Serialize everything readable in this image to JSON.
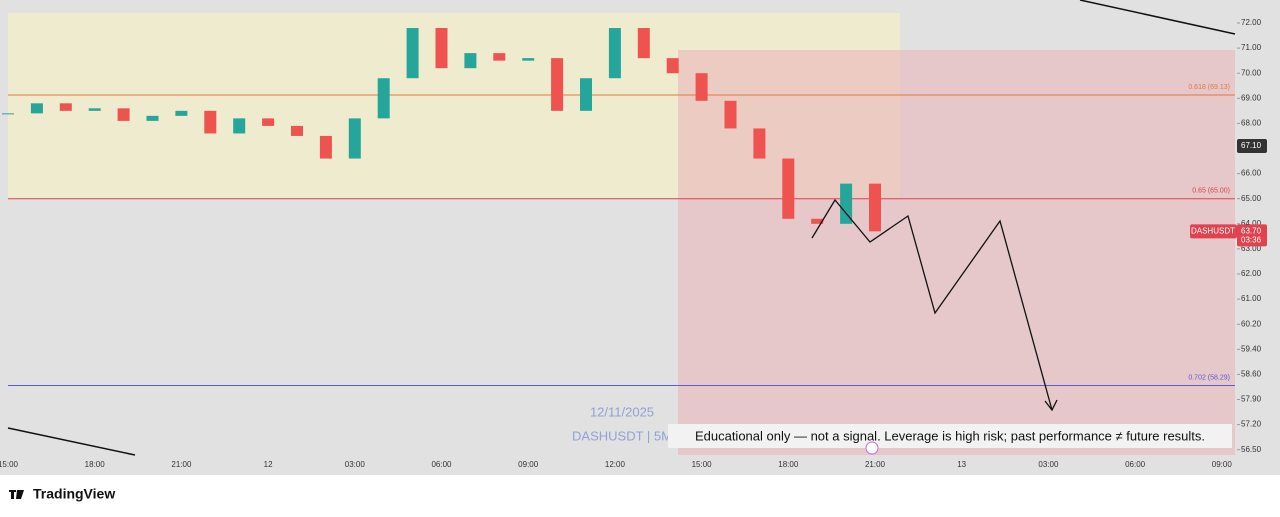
{
  "chart_data": {
    "type": "candlestick",
    "watermark_date": "12/11/2025",
    "watermark_symbol": "DASHUSDT | 5M",
    "disclaimer": "Educational only — not a signal. Leverage is high risk; past performance ≠ future results.",
    "brand": "TradingView",
    "price_tag": {
      "symbol": "DASHUSDT",
      "price": {
        "value": 63.7,
        "label": "63.70"
      },
      "countdown": "03:36",
      "color": "#e0424f"
    },
    "crosshair_price": {
      "value": 67.1,
      "label": "67.10"
    },
    "yticks": [
      {
        "value": 72,
        "label": "72.00"
      },
      {
        "value": 71,
        "label": "71.00"
      },
      {
        "value": 70,
        "label": "70.00"
      },
      {
        "value": 69,
        "label": "69.00"
      },
      {
        "value": 68,
        "label": "68.00"
      },
      {
        "value": 67,
        "label": "67.00"
      },
      {
        "value": 66,
        "label": "66.00"
      },
      {
        "value": 65,
        "label": "65.00"
      },
      {
        "value": 64,
        "label": "64.00"
      },
      {
        "value": 63,
        "label": "63.00"
      },
      {
        "value": 62,
        "label": "62.00"
      },
      {
        "value": 61,
        "label": "61.00"
      },
      {
        "value": 60.2,
        "label": "60.20"
      },
      {
        "value": 59.4,
        "label": "59.40"
      },
      {
        "value": 58.6,
        "label": "58.60"
      },
      {
        "value": 57.9,
        "label": "57.90"
      },
      {
        "value": 57.2,
        "label": "57.20"
      },
      {
        "value": 56.5,
        "label": "56.50"
      }
    ],
    "xticks": [
      "15:00",
      "18:00",
      "21:00",
      "12",
      "03:00",
      "06:00",
      "09:00",
      "12:00",
      "15:00",
      "18:00",
      "21:00",
      "13",
      "03:00",
      "06:00",
      "09:00"
    ],
    "closes": [
      68.4,
      68.8,
      68.5,
      68.6,
      68.1,
      68.3,
      68.5,
      67.6,
      68.2,
      67.9,
      67.5,
      66.6,
      68.2,
      69.8,
      71.8,
      70.2,
      70.8,
      70.5,
      70.6,
      68.5,
      69.8,
      71.8,
      70.6,
      70.0,
      68.9,
      67.8,
      66.6,
      64.2,
      64.0,
      65.6,
      63.7
    ],
    "up_color": "#26a69a",
    "down_color": "#ef5350",
    "levels": [
      {
        "label": "0.618 (69.13)",
        "value": 69.13,
        "color": "#e07b39"
      },
      {
        "label": "0.65 (65.00)",
        "value": 65.0,
        "color": "#e0424f"
      },
      {
        "label": "0.702 (58.29)",
        "value": 58.29,
        "color": "#5b5bd6"
      }
    ]
  }
}
